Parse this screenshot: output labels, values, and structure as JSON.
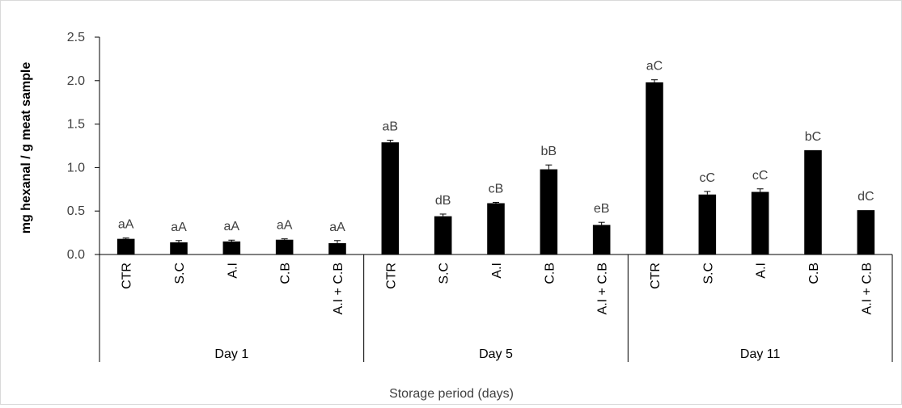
{
  "chart_data": {
    "type": "bar",
    "title": "",
    "ylabel": "mg hexanal / g meat sample",
    "xlabel": "Storage period (days)",
    "ylim": [
      0,
      2.5
    ],
    "yticks": [
      "0.0",
      "0.5",
      "1.0",
      "1.5",
      "2.0",
      "2.5"
    ],
    "bar_color": "#000000",
    "groups": [
      {
        "name": "Day 1",
        "categories": [
          "CTR",
          "S.C",
          "A.I",
          "C.B",
          "A.I + C.B"
        ],
        "values": [
          0.18,
          0.14,
          0.15,
          0.17,
          0.13
        ],
        "errors": [
          0.01,
          0.02,
          0.015,
          0.01,
          0.03
        ],
        "labels": [
          "aA",
          "aA",
          "aA",
          "aA",
          "aA"
        ]
      },
      {
        "name": "Day 5",
        "categories": [
          "CTR",
          "S.C",
          "A.I",
          "C.B",
          "A.I + C.B"
        ],
        "values": [
          1.29,
          0.44,
          0.59,
          0.98,
          0.34
        ],
        "errors": [
          0.025,
          0.025,
          0.01,
          0.05,
          0.03
        ],
        "labels": [
          "aB",
          "dB",
          "cB",
          "bB",
          "eB"
        ]
      },
      {
        "name": "Day 11",
        "categories": [
          "CTR",
          "S.C",
          "A.I",
          "C.B",
          "A.I + C.B"
        ],
        "values": [
          1.98,
          0.69,
          0.72,
          1.2,
          0.51
        ],
        "errors": [
          0.03,
          0.035,
          0.035,
          0.0,
          0.0
        ],
        "labels": [
          "aC",
          "cC",
          "cC",
          "bC",
          "dC"
        ]
      }
    ]
  }
}
